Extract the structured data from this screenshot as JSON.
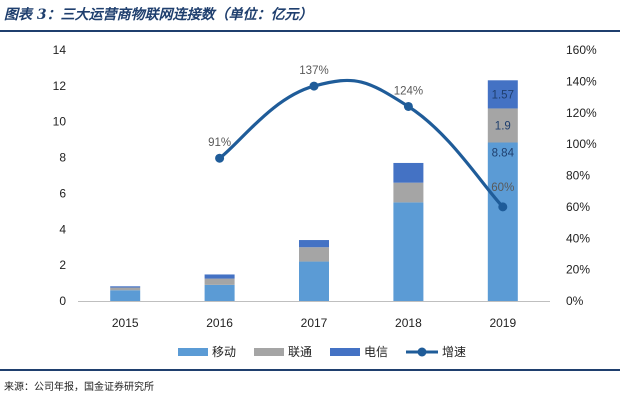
{
  "header": {
    "title": "图表 3：三大运营商物联网连接数（单位：亿元）"
  },
  "footer": {
    "source": "来源：公司年报，国金证券研究所"
  },
  "chart_data": {
    "type": "bar",
    "stacked": true,
    "title": "三大运营商物联网连接数（单位：亿元）",
    "categories": [
      "2015",
      "2016",
      "2017",
      "2018",
      "2019"
    ],
    "series": [
      {
        "name": "移动",
        "values": [
          0.6,
          0.9,
          2.2,
          5.5,
          8.84
        ],
        "color": "#5b9bd5"
      },
      {
        "name": "联通",
        "values": [
          0.15,
          0.35,
          0.8,
          1.1,
          1.9
        ],
        "color": "#a5a5a5"
      },
      {
        "name": "电信",
        "values": [
          0.07,
          0.23,
          0.4,
          1.1,
          1.57
        ],
        "color": "#4472c4"
      }
    ],
    "line_series": {
      "name": "增速",
      "values": [
        91,
        137,
        124,
        60
      ],
      "x_categories": [
        "2016",
        "2017",
        "2018",
        "2019"
      ],
      "color": "#1f5c99",
      "axis": "right"
    },
    "bar_labels": {
      "2019": [
        "8.84",
        "1.9",
        "1.57"
      ]
    },
    "line_labels": [
      "91%",
      "137%",
      "124%",
      "60%"
    ],
    "y_left": {
      "min": 0,
      "max": 14,
      "ticks": [
        "0",
        "2",
        "4",
        "6",
        "8",
        "10",
        "12",
        "14"
      ]
    },
    "y_right": {
      "min": 0,
      "max": 160,
      "ticks": [
        "0%",
        "20%",
        "40%",
        "60%",
        "80%",
        "100%",
        "120%",
        "140%",
        "160%"
      ]
    },
    "legend_position": "bottom"
  }
}
